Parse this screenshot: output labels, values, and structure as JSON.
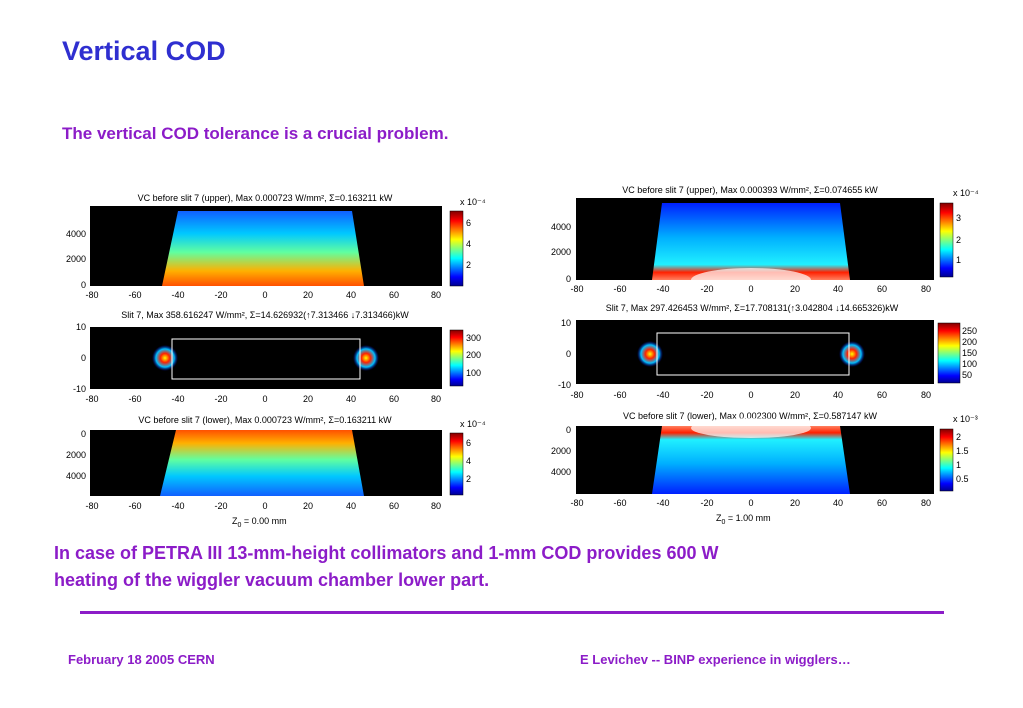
{
  "slide": {
    "title": "Vertical COD",
    "subtitle": "The vertical COD tolerance is a crucial problem.",
    "conclusion_line1": "In case of PETRA III 13-mm-height collimators and 1-mm COD provides 600 W",
    "conclusion_line2": "heating of the wiggler vacuum chamber lower part.",
    "footer_left": "February 18 2005  CERN",
    "footer_right": "E Levichev  -- BINP experience in wigglers…"
  },
  "figures": [
    {
      "z0_label": "Z",
      "z0_sub": "0",
      "z0_value": " = 0.00 mm",
      "plots": [
        {
          "title": "VC before  slit 7 (upper), Max 0.000723 W/mm², Σ=0.163211 kW",
          "xticks": [
            "-80",
            "-60",
            "-40",
            "-20",
            "0",
            "20",
            "40",
            "60",
            "80"
          ],
          "yticks": [
            "4000",
            "2000",
            "0"
          ],
          "cb_exp": "x 10⁻⁴",
          "cb_ticks": [
            "6",
            "4",
            "2"
          ]
        },
        {
          "title": "Slit 7, Max 358.616247 W/mm², Σ=14.626932(↑7.313466 ↓7.313466)kW",
          "xticks": [
            "-80",
            "-60",
            "-40",
            "-20",
            "0",
            "20",
            "40",
            "60",
            "80"
          ],
          "yticks": [
            "10",
            "0",
            "-10"
          ],
          "cb_exp": "",
          "cb_ticks": [
            "300",
            "200",
            "100"
          ]
        },
        {
          "title": "VC before  slit 7 (lower), Max 0.000723 W/mm², Σ=0.163211 kW",
          "xticks": [
            "-80",
            "-60",
            "-40",
            "-20",
            "0",
            "20",
            "40",
            "60",
            "80"
          ],
          "yticks": [
            "0",
            "2000",
            "4000"
          ],
          "cb_exp": "x 10⁻⁴",
          "cb_ticks": [
            "6",
            "4",
            "2"
          ]
        }
      ]
    },
    {
      "z0_label": "Z",
      "z0_sub": "0",
      "z0_value": " = 1.00 mm",
      "plots": [
        {
          "title": "VC before  slit 7 (upper), Max 0.000393 W/mm², Σ=0.074655 kW",
          "xticks": [
            "-80",
            "-60",
            "-40",
            "-20",
            "0",
            "20",
            "40",
            "60",
            "80"
          ],
          "yticks": [
            "4000",
            "2000",
            "0"
          ],
          "cb_exp": "x 10⁻⁴",
          "cb_ticks": [
            "3",
            "2",
            "1"
          ]
        },
        {
          "title": "Slit 7, Max 297.426453 W/mm², Σ=17.708131(↑3.042804 ↓14.665326)kW",
          "xticks": [
            "-80",
            "-60",
            "-40",
            "-20",
            "0",
            "20",
            "40",
            "60",
            "80"
          ],
          "yticks": [
            "10",
            "0",
            "-10"
          ],
          "cb_exp": "",
          "cb_ticks": [
            "250",
            "200",
            "150",
            "100",
            "50"
          ]
        },
        {
          "title": "VC before  slit 7 (lower), Max 0.002300 W/mm², Σ=0.587147 kW",
          "xticks": [
            "-80",
            "-60",
            "-40",
            "-20",
            "0",
            "20",
            "40",
            "60",
            "80"
          ],
          "yticks": [
            "0",
            "2000",
            "4000"
          ],
          "cb_exp": "x 10⁻³",
          "cb_ticks": [
            "2",
            "1.5",
            "1",
            "0.5"
          ]
        }
      ]
    }
  ]
}
